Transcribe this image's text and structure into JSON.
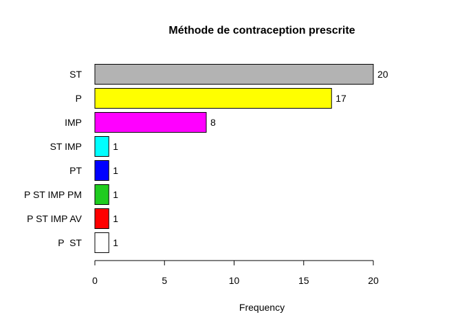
{
  "chart_data": {
    "type": "bar",
    "orientation": "horizontal",
    "title": "Méthode de contraception prescrite",
    "xlabel": "Frequency",
    "ylabel": "",
    "xlim": [
      0,
      20
    ],
    "xticks": [
      0,
      5,
      10,
      15,
      20
    ],
    "grid": false,
    "legend": "none",
    "categories": [
      "ST",
      "P",
      "IMP",
      "ST IMP",
      "PT",
      "P ST IMP PM",
      "P ST IMP AV",
      "P  ST"
    ],
    "values": [
      20,
      17,
      8,
      1,
      1,
      1,
      1,
      1
    ],
    "value_labels": [
      "20",
      "17",
      "8",
      "1",
      "1",
      "1",
      "1",
      "1"
    ],
    "colors": [
      "#b3b3b3",
      "#ffff00",
      "#ff00ff",
      "#00ffff",
      "#0000ff",
      "#1fcc1f",
      "#ff0000",
      "#ffffff"
    ]
  }
}
